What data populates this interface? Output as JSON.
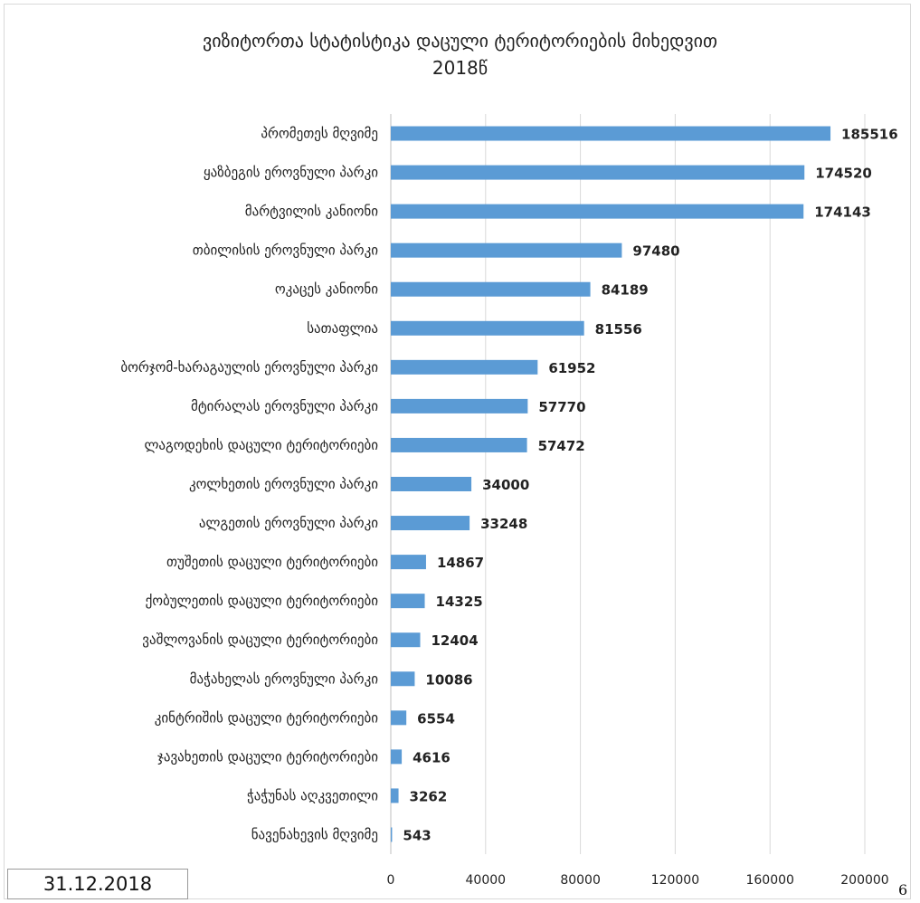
{
  "chart_data": {
    "type": "bar",
    "orientation": "horizontal",
    "title_line1": "ვიზიტორთა სტატისტიკა დაცული ტერიტორიების მიხედვით",
    "title_line2": "2018წ",
    "categories": [
      "პრომეთეს მღვიმე",
      "ყაზბეგის ეროვნული პარკი",
      "მარტვილის კანიონი",
      "თბილისის ეროვნული პარკი",
      "ოკაცეს კანიონი",
      "სათაფლია",
      "ბორჯომ-ხარაგაულის ეროვნული პარკი",
      "მტირალას ეროვნული პარკი",
      "ლაგოდეხის დაცული ტერიტორიები",
      "კოლხეთის ეროვნული პარკი",
      "ალგეთის ეროვნული პარკი",
      "თუშეთის დაცული ტერიტორიები",
      "ქობულეთის დაცული ტერიტორიები",
      "ვაშლოვანის დაცული ტერიტორიები",
      "მაჭახელას ეროვნული პარკი",
      "კინტრიშის დაცული ტერიტორიები",
      "ჯავახეთის დაცული ტერიტორიები",
      "ჭაჭუნას აღკვეთილი",
      "ნავენახევის მღვიმე"
    ],
    "values": [
      185516,
      174520,
      174143,
      97480,
      84189,
      81556,
      61952,
      57770,
      57472,
      34000,
      33248,
      14867,
      14325,
      12404,
      10086,
      6554,
      4616,
      3262,
      543
    ],
    "value_labels": [
      "185516",
      "174520",
      "174143",
      "97480",
      "84189",
      "81556",
      "61952",
      "57770",
      "57472",
      "34000",
      "33248",
      "14867",
      "14325",
      "12404",
      "10086",
      "6554",
      "4616",
      "3262",
      "543"
    ],
    "xlim": [
      0,
      200000
    ],
    "xticks": [
      0,
      40000,
      80000,
      120000,
      160000,
      200000
    ],
    "xtick_labels": [
      "0",
      "40000",
      "80000",
      "120000",
      "160000",
      "200000"
    ],
    "grid": true,
    "bar_color": "#5b9bd5",
    "grid_color": "#d9d9d9"
  },
  "footer": {
    "date": "31.12.2018",
    "page_number": "6"
  }
}
